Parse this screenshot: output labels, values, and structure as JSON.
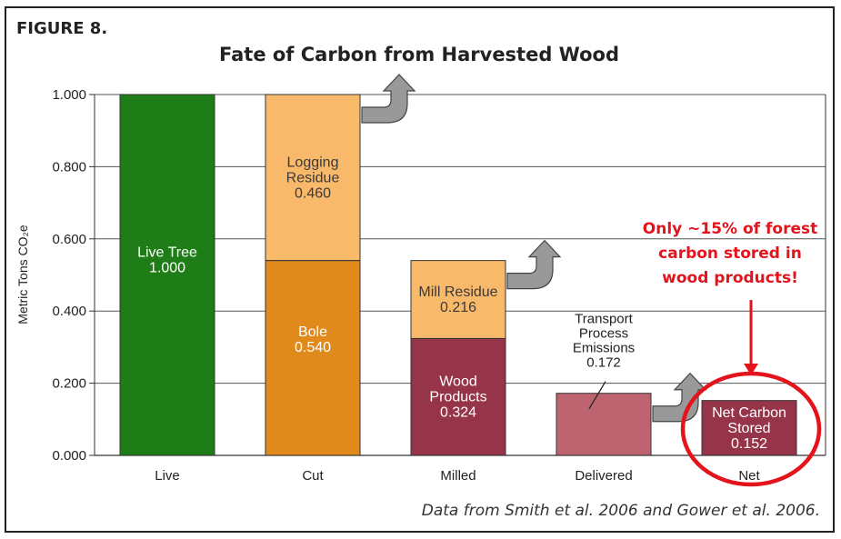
{
  "figure_label": "FIGURE 8.",
  "source_note": "Data from Smith et al. 2006 and Gower et al. 2006.",
  "chart_data": {
    "type": "bar",
    "stacked": true,
    "title": "Fate of Carbon from Harvested Wood",
    "ylabel": "Metric Tons CO₂e",
    "xlabel": "",
    "ylim": [
      0,
      1.0
    ],
    "yticks": [
      "0.000",
      "0.200",
      "0.400",
      "0.600",
      "0.800",
      "1.000"
    ],
    "grid": true,
    "categories": [
      "Live",
      "Cut",
      "Milled",
      "Delivered",
      "Net"
    ],
    "bars": [
      {
        "category": "Live",
        "segments": [
          {
            "label": [
              "Live Tree",
              "1.000"
            ],
            "value": 1.0,
            "color": "#1f7d18",
            "text_color": "#ffffff"
          }
        ],
        "arrow": false
      },
      {
        "category": "Cut",
        "segments": [
          {
            "label": [
              "Bole",
              "0.540"
            ],
            "value": 0.54,
            "color": "#e08a1c",
            "text_color": "#ffffff"
          },
          {
            "label": [
              "Logging",
              "Residue",
              "0.460"
            ],
            "value": 0.46,
            "color": "#f9b96a",
            "text_color": "#3a3a3a"
          }
        ],
        "arrow": true
      },
      {
        "category": "Milled",
        "segments": [
          {
            "label": [
              "Wood",
              "Products",
              "0.324"
            ],
            "value": 0.324,
            "color": "#963449",
            "text_color": "#ffffff"
          },
          {
            "label": [
              "Mill Residue",
              "0.216"
            ],
            "value": 0.216,
            "color": "#f9b96a",
            "text_color": "#3a3a3a"
          }
        ],
        "arrow": true
      },
      {
        "category": "Delivered",
        "segments": [
          {
            "label": [],
            "value": 0.172,
            "color": "#bd6470",
            "text_color": "#ffffff"
          }
        ],
        "outside_label": [
          "Transport",
          "Process",
          "Emissions",
          "0.172"
        ],
        "arrow": true
      },
      {
        "category": "Net",
        "segments": [
          {
            "label": [
              "Net Carbon",
              "Stored",
              "0.152"
            ],
            "value": 0.152,
            "color": "#963449",
            "text_color": "#ffffff"
          }
        ],
        "arrow": false
      }
    ],
    "annotation": {
      "lines": [
        "Only ~15% of forest",
        "carbon stored in",
        "wood products!"
      ],
      "color": "#e3141b"
    }
  }
}
